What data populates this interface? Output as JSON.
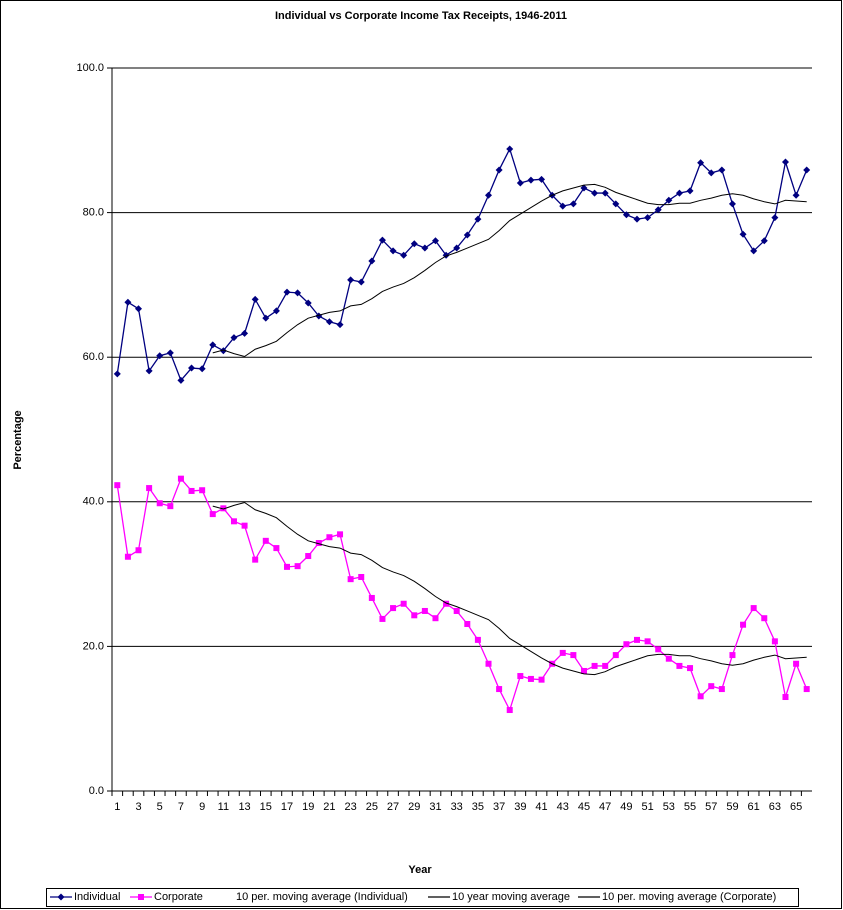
{
  "chart_data": {
    "type": "line",
    "title": "Individual vs Corporate Income Tax Receipts, 1946-2011",
    "x_label": "Year",
    "y_label": "Percentage",
    "categories": [
      1,
      null,
      3,
      null,
      5,
      null,
      7,
      null,
      9,
      null,
      11,
      null,
      13,
      null,
      15,
      null,
      17,
      null,
      19,
      null,
      21,
      null,
      23,
      null,
      25,
      null,
      27,
      null,
      29,
      null,
      31,
      null,
      33,
      null,
      35,
      null,
      37,
      null,
      39,
      null,
      41,
      null,
      43,
      null,
      45,
      null,
      47,
      null,
      49,
      null,
      51,
      null,
      53,
      null,
      55,
      null,
      57,
      null,
      59,
      null,
      61,
      null,
      63,
      null,
      65,
      null
    ],
    "series": [
      {
        "name": "Individual",
        "color": "#000080",
        "marker": "diamond",
        "values": [
          57.7,
          67.6,
          66.7,
          58.1,
          60.2,
          60.6,
          56.8,
          58.5,
          58.4,
          61.7,
          60.9,
          62.7,
          63.3,
          68.0,
          65.4,
          66.4,
          69.0,
          68.9,
          67.5,
          65.7,
          64.9,
          64.5,
          70.7,
          70.4,
          73.3,
          76.2,
          74.7,
          74.1,
          75.7,
          75.1,
          76.1,
          74.1,
          75.1,
          76.9,
          79.1,
          82.4,
          85.9,
          88.8,
          84.1,
          84.5,
          84.6,
          82.4,
          80.9,
          81.2,
          83.4,
          82.7,
          82.7,
          81.2,
          79.7,
          79.1,
          79.3,
          80.4,
          81.7,
          82.7,
          83.0,
          86.9,
          85.5,
          85.9,
          81.2,
          77.0,
          74.7,
          76.1,
          79.3,
          87.0,
          82.4,
          85.9
        ]
      },
      {
        "name": "Corporate",
        "color": "#ff00ff",
        "marker": "square",
        "values": [
          42.3,
          32.4,
          33.3,
          41.9,
          39.8,
          39.4,
          43.2,
          41.5,
          41.6,
          38.3,
          39.1,
          37.3,
          36.7,
          32.0,
          34.6,
          33.6,
          31.0,
          31.1,
          32.5,
          34.3,
          35.1,
          35.5,
          29.3,
          29.6,
          26.7,
          23.8,
          25.3,
          25.9,
          24.3,
          24.9,
          23.9,
          25.9,
          24.9,
          23.1,
          20.9,
          17.6,
          14.1,
          11.2,
          15.9,
          15.5,
          15.4,
          17.6,
          19.1,
          18.8,
          16.6,
          17.3,
          17.3,
          18.8,
          20.3,
          20.9,
          20.7,
          19.6,
          18.3,
          17.3,
          17.0,
          13.1,
          14.5,
          14.1,
          18.8,
          23.0,
          25.3,
          23.9,
          20.7,
          13.0,
          17.6,
          14.1
        ]
      },
      {
        "name": "10 per. moving average (Individual)",
        "color": "#000000",
        "values": [
          null,
          null,
          null,
          null,
          null,
          null,
          null,
          null,
          null,
          60.6,
          61.0,
          60.5,
          60.1,
          61.1,
          61.6,
          62.2,
          63.4,
          64.5,
          65.4,
          65.8,
          66.2,
          66.4,
          67.1,
          67.3,
          68.1,
          69.1,
          69.7,
          70.2,
          71.0,
          72.0,
          73.1,
          74.0,
          74.5,
          75.1,
          75.7,
          76.3,
          77.5,
          78.9,
          79.8,
          80.7,
          81.6,
          82.4,
          83.0,
          83.4,
          83.8,
          83.9,
          83.5,
          82.8,
          82.3,
          81.8,
          81.3,
          81.1,
          81.1,
          81.3,
          81.3,
          81.7,
          82.0,
          82.4,
          82.6,
          82.4,
          81.9,
          81.5,
          81.2,
          81.7,
          81.6,
          81.5
        ]
      },
      {
        "name": "10 per. moving average (Corporate)",
        "color": "#000000",
        "values": [
          null,
          null,
          null,
          null,
          null,
          null,
          null,
          null,
          null,
          39.4,
          39.0,
          39.5,
          39.9,
          38.9,
          38.4,
          37.8,
          36.6,
          35.5,
          34.6,
          34.2,
          33.8,
          33.6,
          32.9,
          32.7,
          31.9,
          30.9,
          30.3,
          29.8,
          29.0,
          28.0,
          26.9,
          26.0,
          25.5,
          24.9,
          24.3,
          23.7,
          22.5,
          21.1,
          20.2,
          19.3,
          18.4,
          17.6,
          17.0,
          16.6,
          16.2,
          16.1,
          16.5,
          17.2,
          17.7,
          18.2,
          18.7,
          18.9,
          18.9,
          18.7,
          18.7,
          18.3,
          18.0,
          17.6,
          17.4,
          17.6,
          18.1,
          18.5,
          18.8,
          18.3,
          18.4,
          18.5
        ]
      }
    ],
    "legend_extra": [
      "10 year moving average"
    ],
    "ylim": [
      0,
      100
    ],
    "yticks": [
      {
        "value": 0,
        "label": "0.0"
      },
      {
        "value": 20,
        "label": "20.0"
      },
      {
        "value": 40,
        "label": "40.0"
      },
      {
        "value": 60,
        "label": "60.0"
      },
      {
        "value": 80,
        "label": "80.0"
      },
      {
        "value": 100,
        "label": "100.0"
      }
    ],
    "grid": true,
    "legend": "bottom"
  }
}
